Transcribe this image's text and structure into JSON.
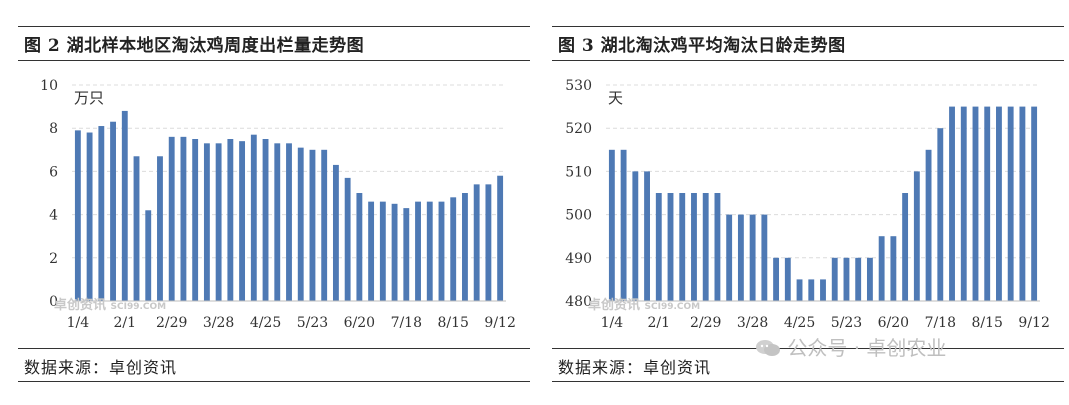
{
  "watermark": {
    "brand_text": "公众号 · 卓创农业",
    "chart_mark_text": "卓创资讯",
    "chart_mark_sub": "SCI99.COM",
    "wechat_icon": "wechat-icon"
  },
  "chart_data": [
    {
      "type": "bar",
      "title": "图 2 湖北样本地区淘汰鸡周度出栏量走势图",
      "source": "数据来源：卓创资讯",
      "ylabel": "万只",
      "xlabel": "",
      "ylim": [
        0,
        10
      ],
      "yticks": [
        "0",
        "2",
        "4",
        "6",
        "8",
        "10"
      ],
      "grid": true,
      "color": "#4e79b4",
      "xtick_labels": [
        "1/4",
        "2/1",
        "2/29",
        "3/28",
        "4/25",
        "5/23",
        "6/20",
        "7/18",
        "8/15",
        "9/12"
      ],
      "values": [
        7.9,
        7.8,
        8.1,
        8.3,
        8.8,
        6.7,
        4.2,
        6.7,
        7.6,
        7.6,
        7.5,
        7.3,
        7.3,
        7.5,
        7.4,
        7.7,
        7.5,
        7.3,
        7.3,
        7.1,
        7.0,
        7.0,
        6.3,
        5.7,
        5.0,
        4.6,
        4.6,
        4.5,
        4.3,
        4.6,
        4.6,
        4.6,
        4.8,
        5.0,
        5.4,
        5.4,
        5.8
      ]
    },
    {
      "type": "bar",
      "title": "图 3 湖北淘汰鸡平均淘汰日龄走势图",
      "source": "数据来源：卓创资讯",
      "ylabel": "天",
      "xlabel": "",
      "ylim": [
        480,
        530
      ],
      "yticks": [
        "480",
        "490",
        "500",
        "510",
        "520",
        "530"
      ],
      "grid": true,
      "color": "#4e79b4",
      "xtick_labels": [
        "1/4",
        "2/1",
        "2/29",
        "3/28",
        "4/25",
        "5/23",
        "6/20",
        "7/18",
        "8/15",
        "9/12"
      ],
      "values": [
        515,
        515,
        510,
        510,
        505,
        505,
        505,
        505,
        505,
        505,
        500,
        500,
        500,
        500,
        490,
        490,
        485,
        485,
        485,
        490,
        490,
        490,
        490,
        495,
        495,
        505,
        510,
        515,
        520,
        525,
        525,
        525,
        525,
        525,
        525,
        525,
        525
      ]
    }
  ]
}
